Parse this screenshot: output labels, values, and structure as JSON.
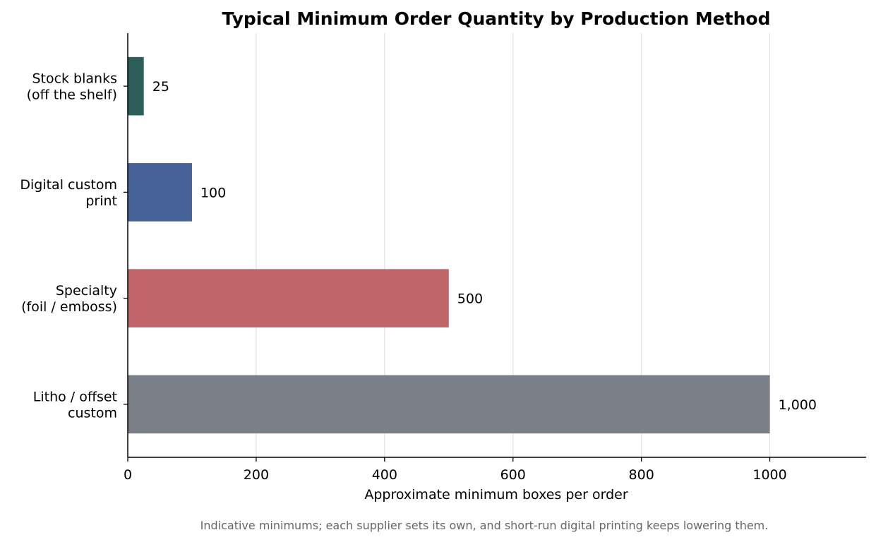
{
  "chart_data": {
    "type": "bar",
    "orientation": "horizontal",
    "title": "Typical Minimum Order Quantity by Production Method",
    "xlabel": "Approximate minimum boxes per order",
    "ylabel": "",
    "categories": [
      [
        "Stock blanks",
        "(off the shelf)"
      ],
      [
        "Digital custom",
        "print"
      ],
      [
        "Specialty",
        "(foil / emboss)"
      ],
      [
        "Litho / offset",
        "custom"
      ]
    ],
    "values": [
      25,
      100,
      500,
      1000
    ],
    "value_labels": [
      "25",
      "100",
      "500",
      "1,000"
    ],
    "colors": [
      "#2e5e5a",
      "#48639a",
      "#c0666b",
      "#7b7f87"
    ],
    "xlim": [
      0,
      1150
    ],
    "xticks": [
      0,
      200,
      400,
      600,
      800,
      1000
    ],
    "xtick_labels": [
      "0",
      "200",
      "400",
      "600",
      "800",
      "1000"
    ],
    "grid": "vertical",
    "legend": "none"
  },
  "caption": "Indicative minimums; each supplier sets its own, and short-run digital printing keeps lowering them."
}
